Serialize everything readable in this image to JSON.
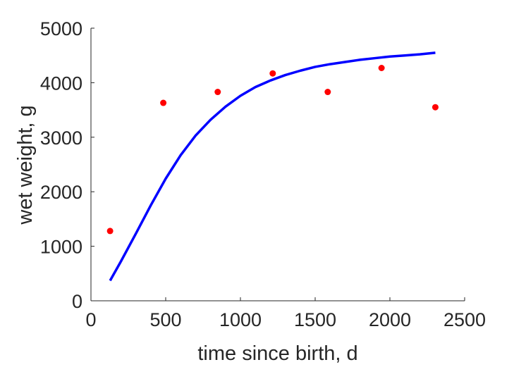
{
  "chart_data": {
    "type": "scatter",
    "xlabel": "time since birth, d",
    "ylabel": "wet weight, g",
    "xlim": [
      0,
      2500
    ],
    "ylim": [
      0,
      5000
    ],
    "xticks": [
      0,
      500,
      1000,
      1500,
      2000,
      2500
    ],
    "yticks": [
      0,
      1000,
      2000,
      3000,
      4000,
      5000
    ],
    "grid": false,
    "legend": "none",
    "series": [
      {
        "kind": "points",
        "color": "#ff0000",
        "x": [
          128,
          484,
          848,
          1216,
          1584,
          1944,
          2304
        ],
        "y": [
          1280,
          3630,
          3830,
          4170,
          3830,
          4270,
          3550
        ]
      },
      {
        "kind": "line",
        "color": "#0000ff",
        "x": [
          128,
          200,
          300,
          400,
          500,
          600,
          700,
          800,
          900,
          1000,
          1100,
          1200,
          1300,
          1400,
          1500,
          1600,
          1700,
          1800,
          1900,
          2000,
          2100,
          2200,
          2304
        ],
        "y": [
          370,
          720,
          1230,
          1750,
          2240,
          2670,
          3030,
          3320,
          3560,
          3760,
          3920,
          4040,
          4140,
          4220,
          4290,
          4340,
          4380,
          4420,
          4450,
          4480,
          4500,
          4520,
          4550
        ]
      }
    ]
  }
}
